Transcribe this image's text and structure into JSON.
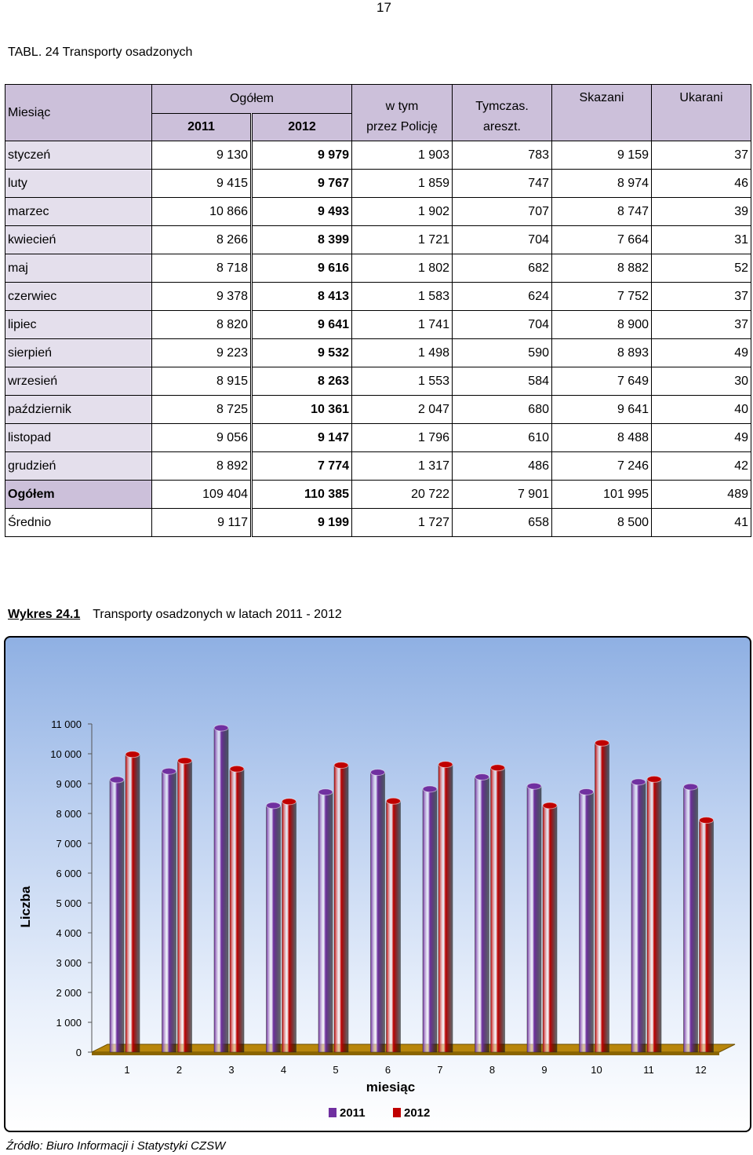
{
  "page_number": "17",
  "table_title": "TABL. 24 Transporty osadzonych",
  "table": {
    "headers": {
      "month": "Miesiąc",
      "total": "Ogółem",
      "y2011": "2011",
      "y2012": "2012",
      "police_1": "w tym",
      "police_2": "przez Policję",
      "temp_1": "Tymczas.",
      "temp_2": "areszt.",
      "convicted": "Skazani",
      "punished": "Ukarani"
    },
    "rows": [
      {
        "month": "styczeń",
        "y2011": "9 130",
        "y2012": "9 979",
        "police": "1 903",
        "temp": "783",
        "convicted": "9 159",
        "punished": "37"
      },
      {
        "month": "luty",
        "y2011": "9 415",
        "y2012": "9 767",
        "police": "1 859",
        "temp": "747",
        "convicted": "8 974",
        "punished": "46"
      },
      {
        "month": "marzec",
        "y2011": "10 866",
        "y2012": "9 493",
        "police": "1 902",
        "temp": "707",
        "convicted": "8 747",
        "punished": "39"
      },
      {
        "month": "kwiecień",
        "y2011": "8 266",
        "y2012": "8 399",
        "police": "1 721",
        "temp": "704",
        "convicted": "7 664",
        "punished": "31"
      },
      {
        "month": "maj",
        "y2011": "8 718",
        "y2012": "9 616",
        "police": "1 802",
        "temp": "682",
        "convicted": "8 882",
        "punished": "52"
      },
      {
        "month": "czerwiec",
        "y2011": "9 378",
        "y2012": "8 413",
        "police": "1 583",
        "temp": "624",
        "convicted": "7 752",
        "punished": "37"
      },
      {
        "month": "lipiec",
        "y2011": "8 820",
        "y2012": "9 641",
        "police": "1 741",
        "temp": "704",
        "convicted": "8 900",
        "punished": "37"
      },
      {
        "month": "sierpień",
        "y2011": "9 223",
        "y2012": "9 532",
        "police": "1 498",
        "temp": "590",
        "convicted": "8 893",
        "punished": "49"
      },
      {
        "month": "wrzesień",
        "y2011": "8 915",
        "y2012": "8 263",
        "police": "1 553",
        "temp": "584",
        "convicted": "7 649",
        "punished": "30"
      },
      {
        "month": "październik",
        "y2011": "8 725",
        "y2012": "10 361",
        "police": "2 047",
        "temp": "680",
        "convicted": "9 641",
        "punished": "40"
      },
      {
        "month": "listopad",
        "y2011": "9 056",
        "y2012": "9 147",
        "police": "1 796",
        "temp": "610",
        "convicted": "8 488",
        "punished": "49"
      },
      {
        "month": "grudzień",
        "y2011": "8 892",
        "y2012": "7 774",
        "police": "1 317",
        "temp": "486",
        "convicted": "7 246",
        "punished": "42"
      }
    ],
    "total": {
      "month": "Ogółem",
      "y2011": "109 404",
      "y2012": "110 385",
      "police": "20 722",
      "temp": "7 901",
      "convicted": "101 995",
      "punished": "489"
    },
    "average": {
      "month": "Średnio",
      "y2011": "9 117",
      "y2012": "9 199",
      "police": "1 727",
      "temp": "658",
      "convicted": "8 500",
      "punished": "41"
    }
  },
  "chart_caption": {
    "number": "Wykres 24.1",
    "title": "Transporty osadzonych w latach 2011 - 2012"
  },
  "chart_data": {
    "type": "bar",
    "title": "",
    "xlabel": "miesiąc",
    "ylabel": "Liczba",
    "categories": [
      "1",
      "2",
      "3",
      "4",
      "5",
      "6",
      "7",
      "8",
      "9",
      "10",
      "11",
      "12"
    ],
    "ylim": [
      0,
      11000
    ],
    "yticks": [
      0,
      1000,
      2000,
      3000,
      4000,
      5000,
      6000,
      7000,
      8000,
      9000,
      10000,
      11000
    ],
    "ytick_labels": [
      "0",
      "1 000",
      "2 000",
      "3 000",
      "4 000",
      "5 000",
      "6 000",
      "7 000",
      "8 000",
      "9 000",
      "10 000",
      "11 000"
    ],
    "series": [
      {
        "name": "2011",
        "color": "#7030a0",
        "values": [
          9130,
          9415,
          10866,
          8266,
          8718,
          9378,
          8820,
          9223,
          8915,
          8725,
          9056,
          8892
        ]
      },
      {
        "name": "2012",
        "color": "#c00000",
        "values": [
          9979,
          9767,
          9493,
          8399,
          9616,
          8413,
          9641,
          9532,
          8263,
          10361,
          9147,
          7774
        ]
      }
    ],
    "legend": "bottom-center",
    "style": "3d-cylinder"
  },
  "source": "Źródło: Biuro Informacji i Statystyki CZSW"
}
